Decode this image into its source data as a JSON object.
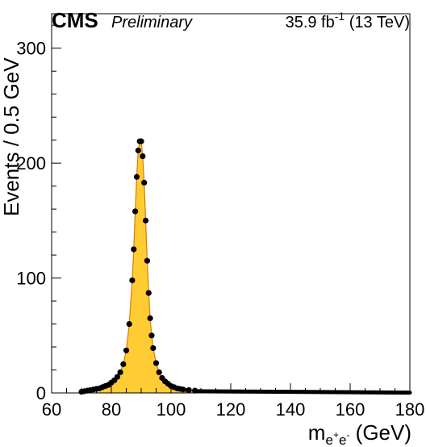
{
  "header": {
    "experiment": "CMS",
    "status": "Preliminary",
    "luminosity_value": "35.9 fb",
    "luminosity_exponent": "-1",
    "energy": "(13 TeV)"
  },
  "axes": {
    "x_title_base": "m",
    "x_title_sub_e1": "e",
    "x_title_sup_plus": "+",
    "x_title_sub_e2": "e",
    "x_title_sup_minus": "-",
    "x_title_unit": "(GeV)",
    "y_title": "Events / 0.5 GeV"
  },
  "chart_data": {
    "type": "line",
    "xlim": [
      60,
      180
    ],
    "ylim": [
      0,
      330
    ],
    "x_ticks": [
      60,
      80,
      100,
      120,
      140,
      160,
      180
    ],
    "x_tick_labels": [
      "60",
      "80",
      "100",
      "120",
      "140",
      "160",
      "180"
    ],
    "y_ticks": [
      0,
      100,
      200,
      300
    ],
    "y_tick_labels": [
      "0",
      "100",
      "200",
      "300"
    ],
    "grid": false,
    "colors": {
      "fill": "#ffcc33",
      "line": "#e07800",
      "points": "#000000"
    },
    "series": [
      {
        "role": "histogram",
        "x": [
          70,
          71,
          72,
          73,
          74,
          75,
          76,
          77,
          78,
          79,
          80,
          81,
          82,
          83,
          84,
          85,
          86,
          87,
          87.5,
          88,
          88.5,
          89,
          89.5,
          90,
          90.5,
          91,
          91.5,
          92,
          92.5,
          93,
          93.5,
          94,
          95,
          96,
          97,
          98,
          99,
          100,
          101,
          102,
          103,
          104,
          106,
          108,
          110,
          115,
          120,
          130,
          140,
          150,
          160,
          170,
          180
        ],
        "values": [
          1,
          1.5,
          2,
          2.5,
          3,
          3.5,
          4,
          5,
          6,
          7,
          9,
          11,
          14,
          18,
          25,
          37,
          60,
          98,
          125,
          158,
          188,
          211,
          219,
          219,
          206,
          183,
          150,
          115,
          87,
          65,
          50,
          39,
          26,
          18,
          13,
          10,
          8,
          6,
          5,
          4,
          3.5,
          3,
          2.5,
          2,
          1.6,
          1.2,
          1,
          0.8,
          0.6,
          0.5,
          0.4,
          0.3,
          0.3
        ]
      },
      {
        "role": "data-points",
        "x": [
          70,
          71,
          72,
          73,
          74,
          75,
          76,
          77,
          78,
          79,
          80,
          81,
          82,
          83,
          84,
          85,
          86,
          87,
          87.5,
          88,
          88.5,
          89,
          89.5,
          90,
          90.5,
          91,
          91.5,
          92,
          92.5,
          93,
          93.5,
          94,
          95,
          96,
          97,
          98,
          99,
          100,
          101,
          102,
          103,
          104,
          106,
          108,
          110,
          115,
          120,
          130,
          140,
          150,
          160,
          170,
          180
        ],
        "values": [
          1,
          1.5,
          2,
          2.5,
          3,
          3.5,
          4,
          5,
          6,
          7,
          9,
          11,
          14,
          18,
          25,
          37,
          60,
          98,
          125,
          158,
          188,
          211,
          219,
          219,
          206,
          183,
          150,
          115,
          87,
          65,
          50,
          39,
          26,
          18,
          13,
          10,
          8,
          6,
          5,
          4,
          3.5,
          3,
          2.5,
          2,
          1.6,
          1.2,
          1,
          0.8,
          0.6,
          0.5,
          0.4,
          0.3,
          0.3
        ]
      }
    ]
  }
}
